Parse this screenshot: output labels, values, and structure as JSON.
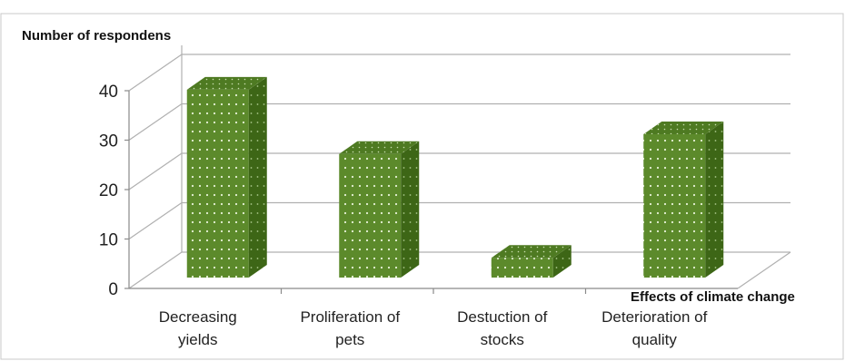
{
  "chart_data": {
    "type": "bar",
    "categories": [
      [
        "Decreasing",
        "yields"
      ],
      [
        "Proliferation of",
        "pets"
      ],
      [
        "Destuction of",
        "stocks"
      ],
      [
        "Deterioration of",
        "quality"
      ]
    ],
    "values": [
      38,
      25,
      4,
      29
    ],
    "ylabel": "Number of respondens",
    "xlabel": "Effects of climate change",
    "ylim": [
      0,
      40
    ],
    "yticks": [
      0,
      10,
      20,
      30,
      40
    ],
    "grid": true,
    "style": "3d",
    "colors": {
      "bar_front": "#5c8a2b",
      "bar_side": "#3d6616",
      "bar_top": "#4e7a22",
      "grid": "#b0b0b0",
      "frame": "#c8c8c8"
    }
  }
}
